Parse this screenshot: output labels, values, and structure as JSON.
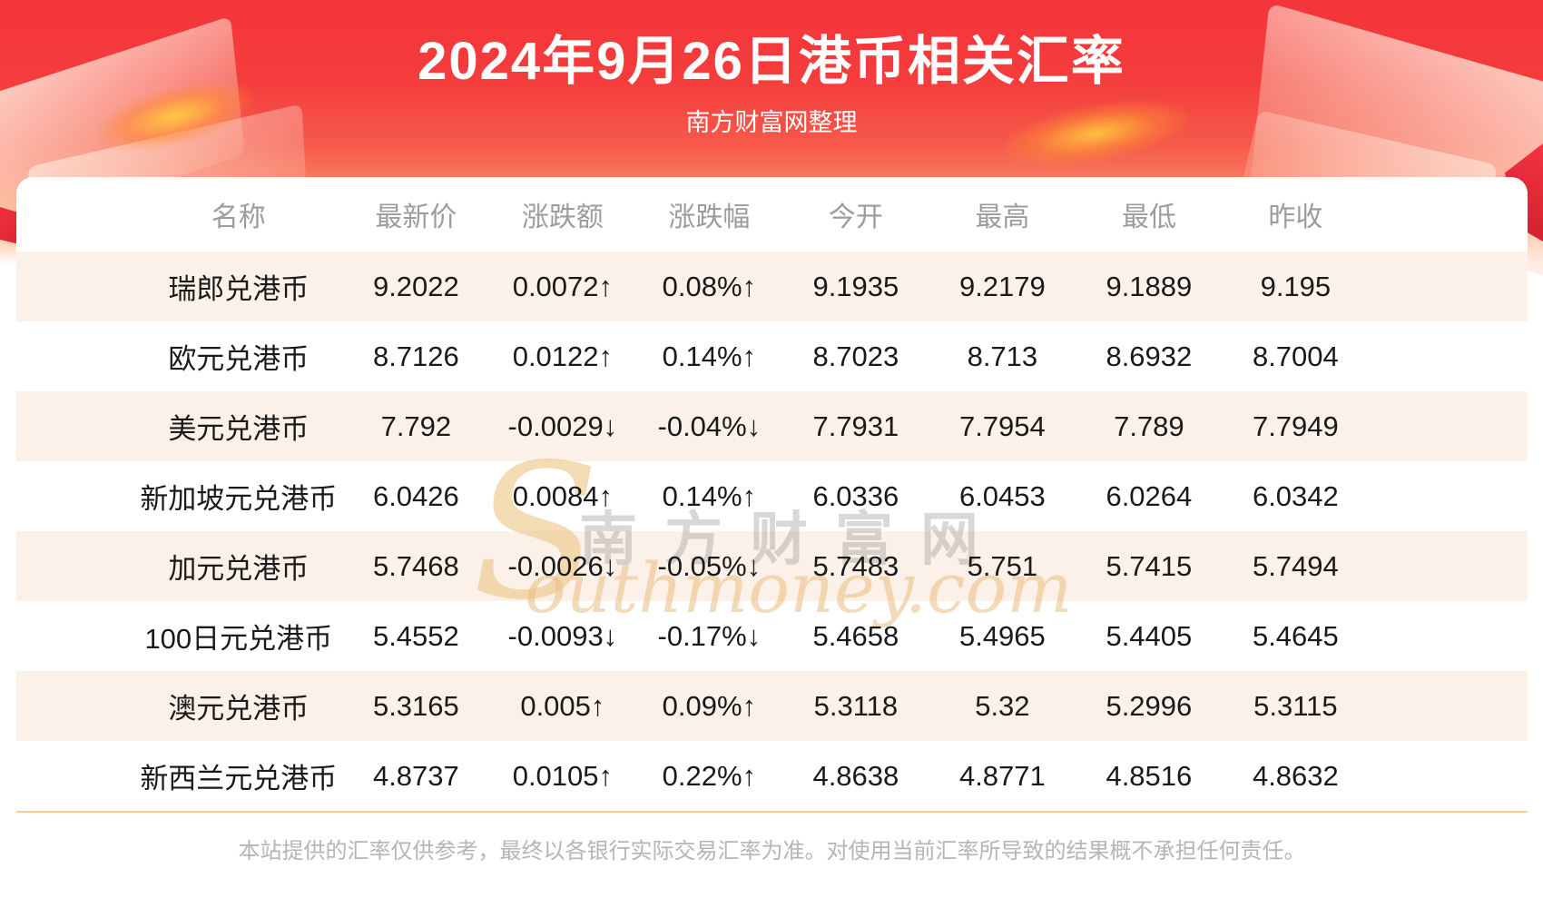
{
  "page": {
    "title": "2024年9月26日港币相关汇率",
    "subtitle": "南方财富网整理",
    "footer": "本站提供的汇率仅供参考，最终以各银行实际交易汇率为准。对使用当前汇率所导致的结果概不承担任何责任。"
  },
  "watermark": {
    "initial": "S",
    "cn": "南方财富网",
    "en": "outhmoney.com"
  },
  "icons": {
    "up_arrow": "↑",
    "down_arrow": "↓"
  },
  "colors": {
    "up": "#f80606",
    "down": "#079407",
    "row_alt": "#fcf1e8",
    "divider": "#f8ca9a",
    "hero_red": "#f4343b"
  },
  "table": {
    "columns": [
      "名称",
      "最新价",
      "涨跌额",
      "涨跌幅",
      "今开",
      "最高",
      "最低",
      "昨收"
    ],
    "rows": [
      {
        "name": "瑞郎兑港币",
        "last": "9.2022",
        "dir": "up",
        "change": "0.0072",
        "pct": "0.08%",
        "open": "9.1935",
        "high": "9.2179",
        "low": "9.1889",
        "prev": "9.195"
      },
      {
        "name": "欧元兑港币",
        "last": "8.7126",
        "dir": "up",
        "change": "0.0122",
        "pct": "0.14%",
        "open": "8.7023",
        "high": "8.713",
        "low": "8.6932",
        "prev": "8.7004"
      },
      {
        "name": "美元兑港币",
        "last": "7.792",
        "dir": "down",
        "change": "-0.0029",
        "pct": "-0.04%",
        "open": "7.7931",
        "high": "7.7954",
        "low": "7.789",
        "prev": "7.7949"
      },
      {
        "name": "新加坡元兑港币",
        "last": "6.0426",
        "dir": "up",
        "change": "0.0084",
        "pct": "0.14%",
        "open": "6.0336",
        "high": "6.0453",
        "low": "6.0264",
        "prev": "6.0342"
      },
      {
        "name": "加元兑港币",
        "last": "5.7468",
        "dir": "down",
        "change": "-0.0026",
        "pct": "-0.05%",
        "open": "5.7483",
        "high": "5.751",
        "low": "5.7415",
        "prev": "5.7494"
      },
      {
        "name": "100日元兑港币",
        "last": "5.4552",
        "dir": "down",
        "change": "-0.0093",
        "pct": "-0.17%",
        "open": "5.4658",
        "high": "5.4965",
        "low": "5.4405",
        "prev": "5.4645"
      },
      {
        "name": "澳元兑港币",
        "last": "5.3165",
        "dir": "up",
        "change": "0.005",
        "pct": "0.09%",
        "open": "5.3118",
        "high": "5.32",
        "low": "5.2996",
        "prev": "5.3115"
      },
      {
        "name": "新西兰元兑港币",
        "last": "4.8737",
        "dir": "up",
        "change": "0.0105",
        "pct": "0.22%",
        "open": "4.8638",
        "high": "4.8771",
        "low": "4.8516",
        "prev": "4.8632"
      }
    ]
  }
}
